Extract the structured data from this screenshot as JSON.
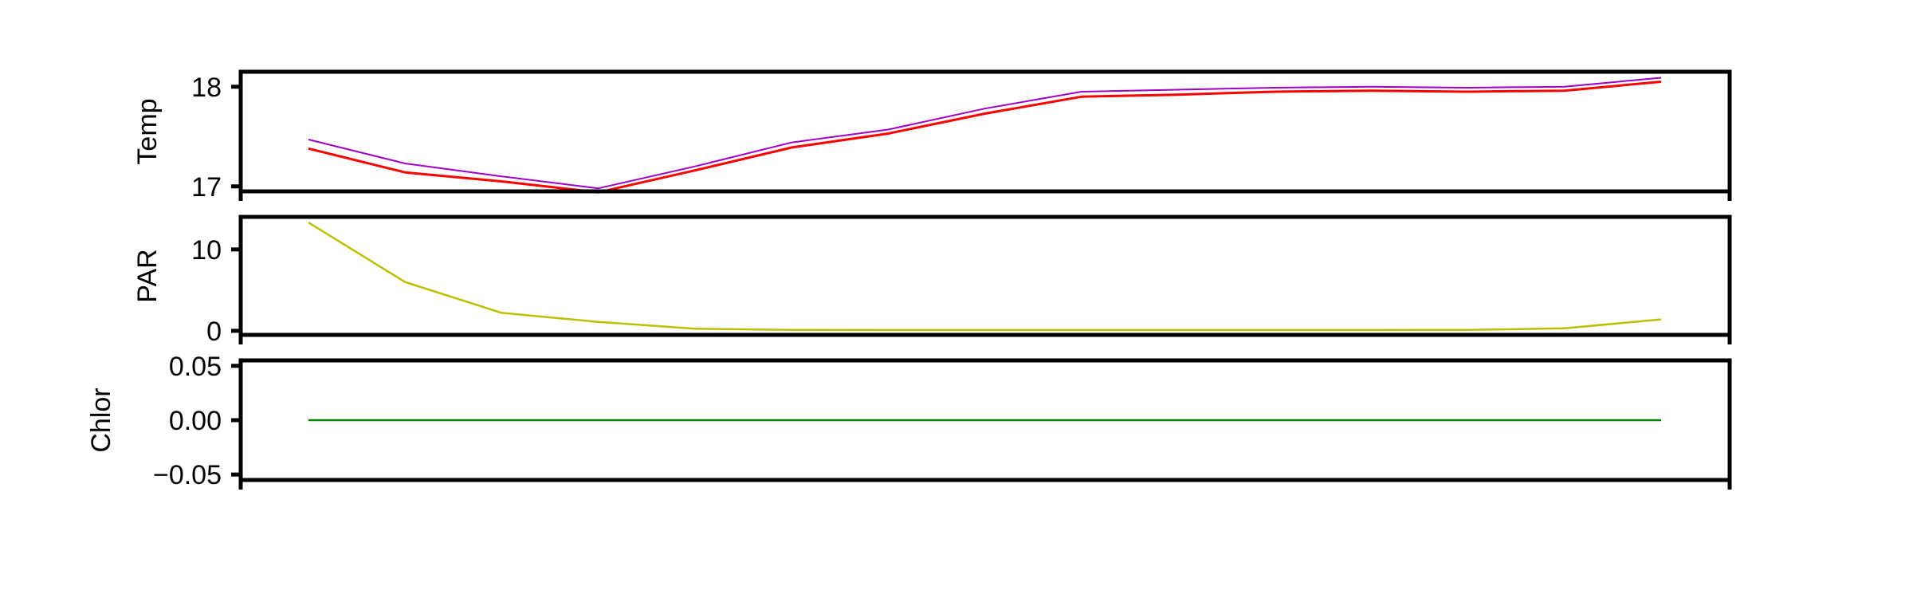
{
  "chart_data": [
    {
      "type": "line",
      "ylabel": "Temp",
      "ylim": [
        16.95,
        18.15
      ],
      "yticks": [
        17,
        18
      ],
      "ytick_labels": [
        "17",
        "18"
      ],
      "x": [
        0,
        1,
        2,
        3,
        4,
        5,
        6,
        7,
        8,
        9,
        10,
        11,
        12,
        13,
        14
      ],
      "series": [
        {
          "color": "#a000c8",
          "stroke_width": 2,
          "values": [
            17.47,
            17.23,
            17.1,
            16.98,
            17.2,
            17.44,
            17.57,
            17.78,
            17.95,
            17.97,
            17.99,
            18.0,
            17.99,
            18.0,
            18.09
          ]
        },
        {
          "color": "#ff0000",
          "stroke_width": 3,
          "values": [
            17.38,
            17.14,
            17.05,
            16.94,
            17.16,
            17.39,
            17.53,
            17.73,
            17.9,
            17.92,
            17.95,
            17.96,
            17.95,
            17.96,
            18.05
          ]
        }
      ]
    },
    {
      "type": "line",
      "ylabel": "PAR",
      "ylim": [
        -0.5,
        14.0
      ],
      "yticks": [
        0,
        10
      ],
      "ytick_labels": [
        "0",
        "10"
      ],
      "x": [
        0,
        1,
        2,
        3,
        4,
        5,
        6,
        7,
        8,
        9,
        10,
        11,
        12,
        13,
        14
      ],
      "series": [
        {
          "color": "#bfbf00",
          "stroke_width": 2.5,
          "values": [
            13.3,
            6.0,
            2.2,
            1.1,
            0.25,
            0.12,
            0.1,
            0.1,
            0.1,
            0.1,
            0.1,
            0.1,
            0.12,
            0.3,
            1.4
          ]
        }
      ]
    },
    {
      "type": "line",
      "ylabel": "Chlor",
      "ylim": [
        -0.055,
        0.055
      ],
      "yticks": [
        -0.05,
        0.0,
        0.05
      ],
      "ytick_labels": [
        "−0.05",
        "0.00",
        "0.05"
      ],
      "x": [
        0,
        1,
        2,
        3,
        4,
        5,
        6,
        7,
        8,
        9,
        10,
        11,
        12,
        13,
        14
      ],
      "series": [
        {
          "color": "#008000",
          "stroke_width": 2.5,
          "values": [
            0,
            0,
            0,
            0,
            0,
            0,
            0,
            0,
            0,
            0,
            0,
            0,
            0,
            0,
            0
          ]
        }
      ]
    }
  ]
}
